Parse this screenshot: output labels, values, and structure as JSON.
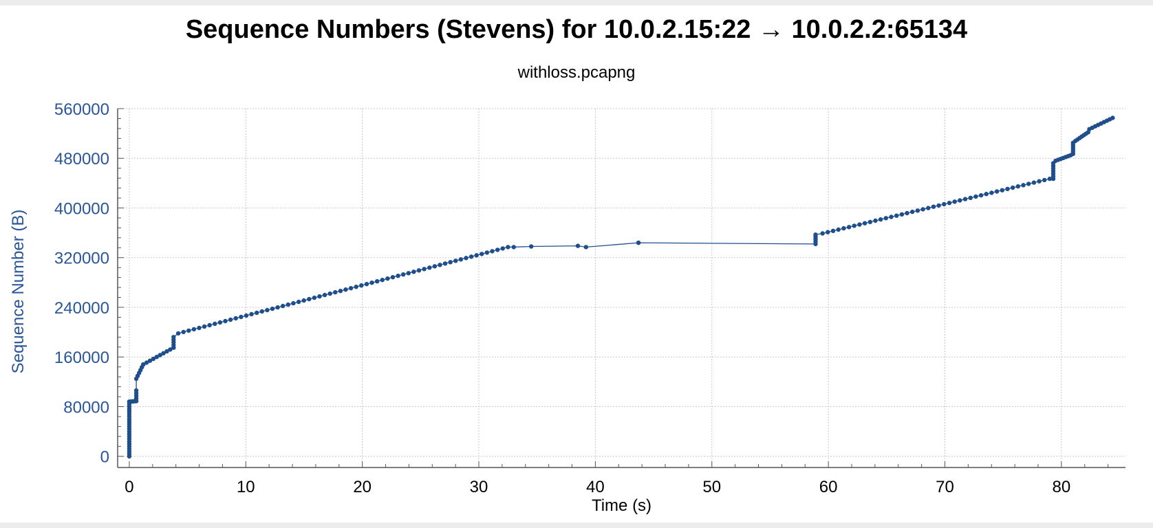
{
  "window": {
    "title": "Sequence Numbers (Stevens) for 10.0.2.15:22 → 10.0.2.2:65134",
    "subtitle": "withloss.pcapng"
  },
  "colors": {
    "series": "#1f4e8c",
    "y_axis_text": "#2a5597",
    "grid": "#c8c8c8",
    "background": "#ffffff"
  },
  "chart_data": {
    "type": "scatter",
    "title": "Sequence Numbers (Stevens) for 10.0.2.15:22 → 10.0.2.2:65134",
    "subtitle": "withloss.pcapng",
    "xlabel": "Time (s)",
    "ylabel": "Sequence Number (B)",
    "xlim": [
      -1,
      85.5
    ],
    "ylim": [
      -18000,
      560000
    ],
    "xticks": [
      0,
      10,
      20,
      30,
      40,
      50,
      60,
      70,
      80
    ],
    "yticks": [
      0,
      80000,
      160000,
      240000,
      320000,
      400000,
      480000,
      560000
    ],
    "xtick_labels": [
      "0",
      "10",
      "20",
      "30",
      "40",
      "50",
      "60",
      "70",
      "80"
    ],
    "ytick_labels": [
      "0",
      "80000",
      "160000",
      "240000",
      "320000",
      "400000",
      "480000",
      "560000"
    ],
    "grid": true,
    "connected_line": true,
    "series": [
      {
        "segments": [
          {
            "x_start": 0.0,
            "x_end": 0.0,
            "y_start": 0,
            "y_end": 88000,
            "step": 0.0
          },
          {
            "x_start": 0.0,
            "x_end": 0.6,
            "y_start": 88000,
            "y_end": 89000,
            "step": 0.1
          },
          {
            "x_start": 0.6,
            "x_end": 0.6,
            "y_start": 89000,
            "y_end": 106000,
            "step": 0.0
          },
          {
            "x_start": 0.6,
            "x_end": 1.2,
            "y_start": 125000,
            "y_end": 148000,
            "step": 0.12
          },
          {
            "x_start": 1.2,
            "x_end": 3.8,
            "y_start": 148000,
            "y_end": 175000,
            "step": 0.3
          },
          {
            "x_start": 3.8,
            "x_end": 3.8,
            "y_start": 175000,
            "y_end": 192000,
            "step": 0.0
          },
          {
            "x_start": 4.2,
            "x_end": 32.5,
            "y_start": 198000,
            "y_end": 337000,
            "step": 0.45
          },
          {
            "x_start": 33.0,
            "x_end": 34.5,
            "y_start": 337000,
            "y_end": 338000,
            "step": 1.5
          },
          {
            "x_start": 38.5,
            "x_end": 39.2,
            "y_start": 339000,
            "y_end": 337000,
            "step": 0.7
          },
          {
            "x_start": 43.7,
            "x_end": 43.7,
            "y_start": 344000,
            "y_end": 344000,
            "step": 1.0
          },
          {
            "x_start": 58.9,
            "x_end": 58.9,
            "y_start": 342000,
            "y_end": 357000,
            "step": 0.0
          },
          {
            "x_start": 59.5,
            "x_end": 79.0,
            "y_start": 359000,
            "y_end": 447000,
            "step": 0.45
          },
          {
            "x_start": 79.3,
            "x_end": 79.3,
            "y_start": 447000,
            "y_end": 472000,
            "step": 0.0
          },
          {
            "x_start": 79.5,
            "x_end": 80.8,
            "y_start": 476000,
            "y_end": 485000,
            "step": 0.2
          },
          {
            "x_start": 81.0,
            "x_end": 81.0,
            "y_start": 487000,
            "y_end": 505000,
            "step": 0.0
          },
          {
            "x_start": 81.2,
            "x_end": 82.3,
            "y_start": 508000,
            "y_end": 522000,
            "step": 0.18
          },
          {
            "x_start": 82.4,
            "x_end": 84.4,
            "y_start": 527000,
            "y_end": 545000,
            "step": 0.25
          }
        ]
      }
    ]
  }
}
